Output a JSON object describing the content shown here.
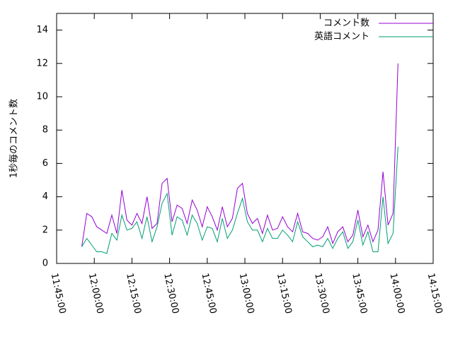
{
  "chart_data": {
    "type": "line",
    "y_label": "1秒毎のコメント数",
    "x": [
      "11:55:00",
      "11:57:00",
      "11:59:00",
      "12:01:00",
      "12:03:00",
      "12:05:00",
      "12:07:00",
      "12:09:00",
      "12:11:00",
      "12:13:00",
      "12:15:00",
      "12:17:00",
      "12:19:00",
      "12:21:00",
      "12:23:00",
      "12:25:00",
      "12:27:00",
      "12:29:00",
      "12:31:00",
      "12:33:00",
      "12:35:00",
      "12:37:00",
      "12:39:00",
      "12:41:00",
      "12:43:00",
      "12:45:00",
      "12:47:00",
      "12:49:00",
      "12:51:00",
      "12:53:00",
      "12:55:00",
      "12:57:00",
      "12:59:00",
      "13:01:00",
      "13:03:00",
      "13:05:00",
      "13:07:00",
      "13:09:00",
      "13:11:00",
      "13:13:00",
      "13:15:00",
      "13:17:00",
      "13:19:00",
      "13:21:00",
      "13:23:00",
      "13:25:00",
      "13:27:00",
      "13:29:00",
      "13:31:00",
      "13:33:00",
      "13:35:00",
      "13:37:00",
      "13:39:00",
      "13:41:00",
      "13:43:00",
      "13:45:00",
      "13:47:00",
      "13:49:00",
      "13:51:00",
      "13:53:00",
      "13:55:00",
      "13:57:00",
      "13:59:00",
      "14:01:00"
    ],
    "series": [
      {
        "name": "コメント数",
        "color": "#9400d3",
        "values": [
          1.0,
          3.0,
          2.8,
          2.2,
          2.0,
          1.8,
          2.9,
          1.8,
          4.4,
          2.6,
          2.3,
          3.0,
          2.4,
          4.0,
          2.1,
          2.4,
          4.8,
          5.1,
          2.5,
          3.5,
          3.3,
          2.4,
          3.8,
          3.2,
          2.2,
          3.4,
          2.8,
          2.0,
          3.4,
          2.2,
          2.7,
          4.5,
          4.8,
          3.0,
          2.4,
          2.7,
          1.8,
          2.9,
          2.0,
          2.1,
          2.8,
          2.2,
          1.9,
          3.0,
          1.9,
          1.8,
          1.5,
          1.4,
          1.6,
          2.2,
          1.2,
          1.9,
          2.2,
          1.3,
          1.7,
          3.2,
          1.6,
          2.3,
          1.3,
          2.0,
          5.5,
          2.3,
          3.0,
          12.0
        ]
      },
      {
        "name": "英語コメント",
        "color": "#009e73",
        "values": [
          1.0,
          1.5,
          1.1,
          0.7,
          0.7,
          0.6,
          1.8,
          1.4,
          2.9,
          2.0,
          2.1,
          2.5,
          1.5,
          2.8,
          1.3,
          2.2,
          3.6,
          4.2,
          1.7,
          2.8,
          2.6,
          1.7,
          2.9,
          2.4,
          1.4,
          2.2,
          2.1,
          1.3,
          2.7,
          1.5,
          2.0,
          3.0,
          3.9,
          2.5,
          2.0,
          2.0,
          1.3,
          2.1,
          1.5,
          1.5,
          2.0,
          1.7,
          1.3,
          2.5,
          1.6,
          1.3,
          1.0,
          1.1,
          1.0,
          1.5,
          0.9,
          1.5,
          1.9,
          0.9,
          1.3,
          2.6,
          1.1,
          1.9,
          0.7,
          0.7,
          4.0,
          1.2,
          1.8,
          7.0
        ]
      }
    ],
    "xlim": [
      "11:45:00",
      "14:15:00"
    ],
    "xticks": [
      "11:45:00",
      "12:00:00",
      "12:15:00",
      "12:30:00",
      "12:45:00",
      "13:00:00",
      "13:15:00",
      "13:30:00",
      "13:45:00",
      "14:00:00",
      "14:15:00"
    ],
    "ylim": [
      0,
      15
    ],
    "yticks": [
      0,
      2,
      4,
      6,
      8,
      10,
      12,
      14
    ],
    "legend": "top-right"
  }
}
